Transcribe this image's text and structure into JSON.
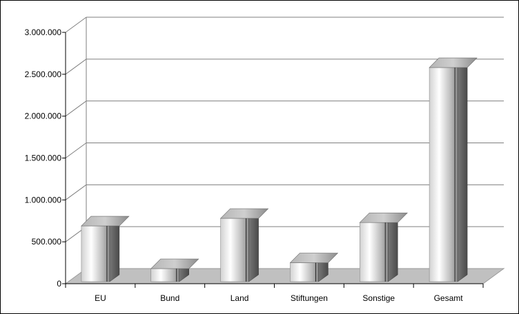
{
  "chart_data": {
    "type": "bar",
    "style": "3d-cylinder",
    "categories": [
      "EU",
      "Bund",
      "Land",
      "Stiftungen",
      "Sonstige",
      "Gesamt"
    ],
    "values": [
      690000,
      180000,
      780000,
      250000,
      730000,
      2580000
    ],
    "ylim": [
      0,
      3000000
    ],
    "yticks": [
      "0",
      "500.000",
      "1.000.000",
      "1.500.000",
      "2.000.000",
      "2.500.000",
      "3.000.000"
    ],
    "ytick_values": [
      0,
      500000,
      1000000,
      1500000,
      2000000,
      2500000,
      3000000
    ],
    "title": "",
    "xlabel": "",
    "ylabel": "",
    "grid": true,
    "legend": "none",
    "colors": {
      "bar_light": "#ffffff",
      "bar_mid": "#c8c8c8",
      "bar_dark": "#6e6e6e",
      "floor": "#c0c0c0",
      "grid": "#7f7f7f"
    }
  }
}
